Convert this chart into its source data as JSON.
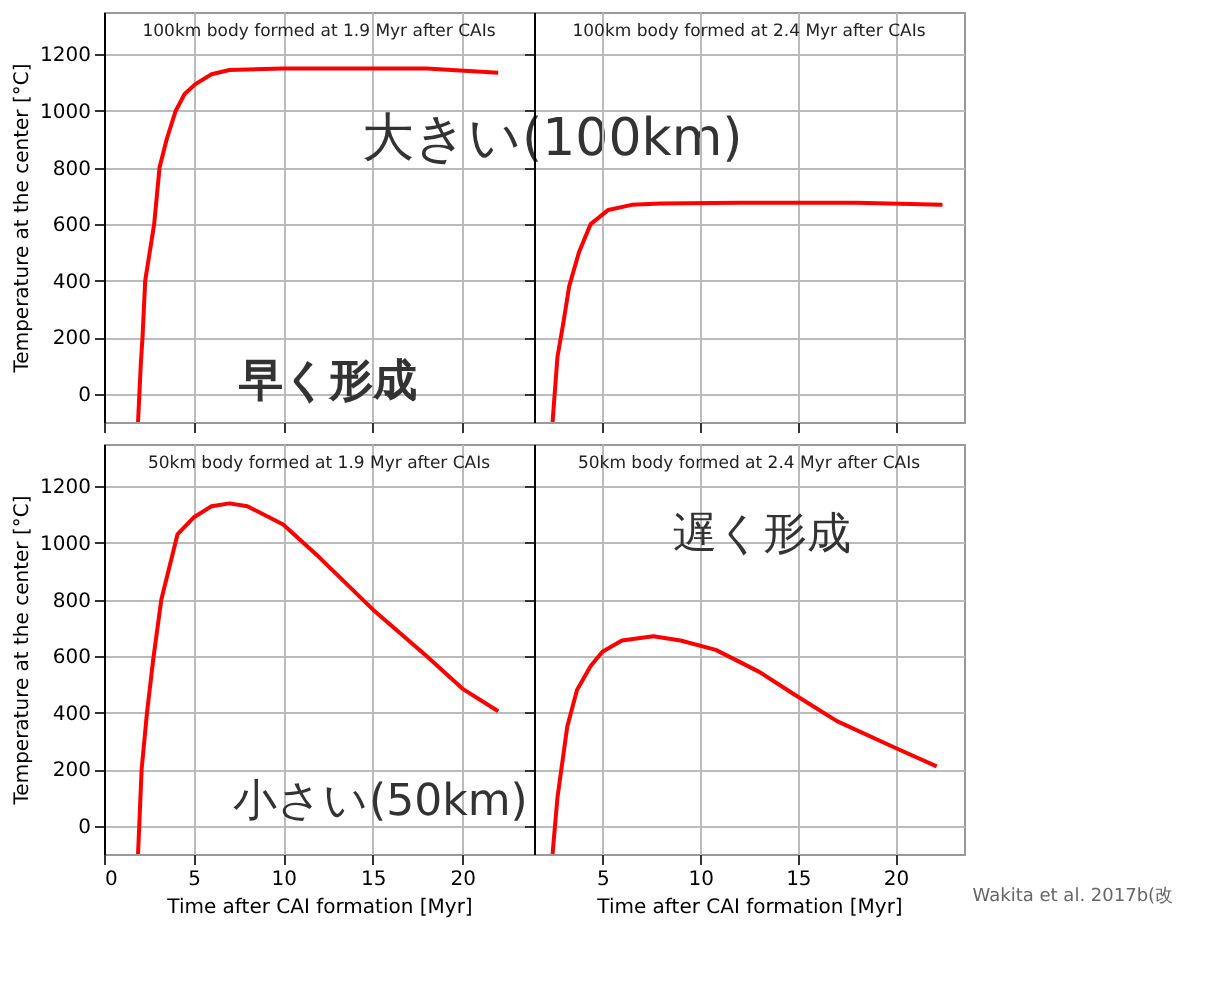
{
  "chart_data": [
    {
      "type": "line",
      "title": "100km body formed at 1.9 Myr after CAIs",
      "ylabel": "Temperature at the center [°C]",
      "xlim": [
        0,
        24
      ],
      "xticks": [
        0,
        5,
        10,
        15,
        20
      ],
      "ylim": [
        -100,
        1350
      ],
      "yticks": [
        0,
        200,
        400,
        600,
        800,
        1000,
        1200
      ],
      "grid": true,
      "tick_labels": "y",
      "series": [
        {
          "color": "#ff0000",
          "x": [
            1.9,
            2.05,
            2.15,
            2.3,
            2.8,
            3.1,
            3.5,
            4.0,
            4.5,
            5.1,
            6,
            7,
            10,
            18,
            22
          ],
          "values": [
            -100,
            100,
            200,
            400,
            600,
            800,
            900,
            1000,
            1060,
            1095,
            1130,
            1145,
            1150,
            1150,
            1135
          ]
        }
      ],
      "annotations": [
        "大きい(100km)",
        "早く形成"
      ]
    },
    {
      "type": "line",
      "title": "100km body formed at 2.4 Myr after CAIs",
      "xlim": [
        1.5,
        23.5
      ],
      "xticks": [
        5,
        10,
        15,
        20
      ],
      "ylim": [
        -100,
        1350
      ],
      "yticks": [
        0,
        200,
        400,
        600,
        800,
        1000,
        1200
      ],
      "grid": true,
      "tick_labels": false,
      "series": [
        {
          "color": "#ff0000",
          "x": [
            2.45,
            2.7,
            3.0,
            3.3,
            3.8,
            4.4,
            5.3,
            6.5,
            8,
            12,
            18,
            22.4
          ],
          "values": [
            -100,
            130,
            250,
            380,
            500,
            600,
            650,
            668,
            673,
            675,
            675,
            668
          ]
        }
      ]
    },
    {
      "type": "line",
      "title": "50km body formed at 1.9 Myr after CAIs",
      "xlabel": "Time after CAI formation [Myr]",
      "ylabel": "Temperature at the center [°C]",
      "xlim": [
        0,
        24
      ],
      "xticks": [
        0,
        5,
        10,
        15,
        20
      ],
      "ylim": [
        -100,
        1350
      ],
      "yticks": [
        0,
        200,
        400,
        600,
        800,
        1000,
        1200
      ],
      "grid": true,
      "series": [
        {
          "color": "#ff0000",
          "x": [
            1.9,
            2.1,
            2.4,
            2.75,
            3.2,
            4.1,
            5,
            6,
            7,
            8,
            10,
            12,
            15,
            18,
            20,
            22
          ],
          "values": [
            -100,
            200,
            400,
            590,
            800,
            1030,
            1090,
            1130,
            1140,
            1130,
            1065,
            950,
            765,
            600,
            485,
            405
          ]
        }
      ],
      "annotations": [
        "小さい(50km)"
      ]
    },
    {
      "type": "line",
      "title": "50km body formed at 2.4 Myr after CAIs",
      "xlabel": "Time after CAI formation [Myr]",
      "xlim": [
        1.5,
        23.5
      ],
      "xticks": [
        5,
        10,
        15,
        20
      ],
      "ylim": [
        -100,
        1350
      ],
      "yticks": [
        0,
        200,
        400,
        600,
        800,
        1000,
        1200
      ],
      "grid": true,
      "tick_labels": "x",
      "series": [
        {
          "color": "#ff0000",
          "x": [
            2.45,
            2.7,
            3.2,
            3.7,
            4.4,
            5,
            6,
            7.6,
            9,
            10.8,
            13,
            14.8,
            17,
            20,
            22.1
          ],
          "values": [
            -100,
            100,
            350,
            480,
            565,
            615,
            655,
            670,
            655,
            622,
            545,
            465,
            370,
            275,
            210
          ]
        }
      ],
      "annotations": [
        "遅く形成",
        "Wakita et al. 2017b(改"
      ]
    }
  ]
}
